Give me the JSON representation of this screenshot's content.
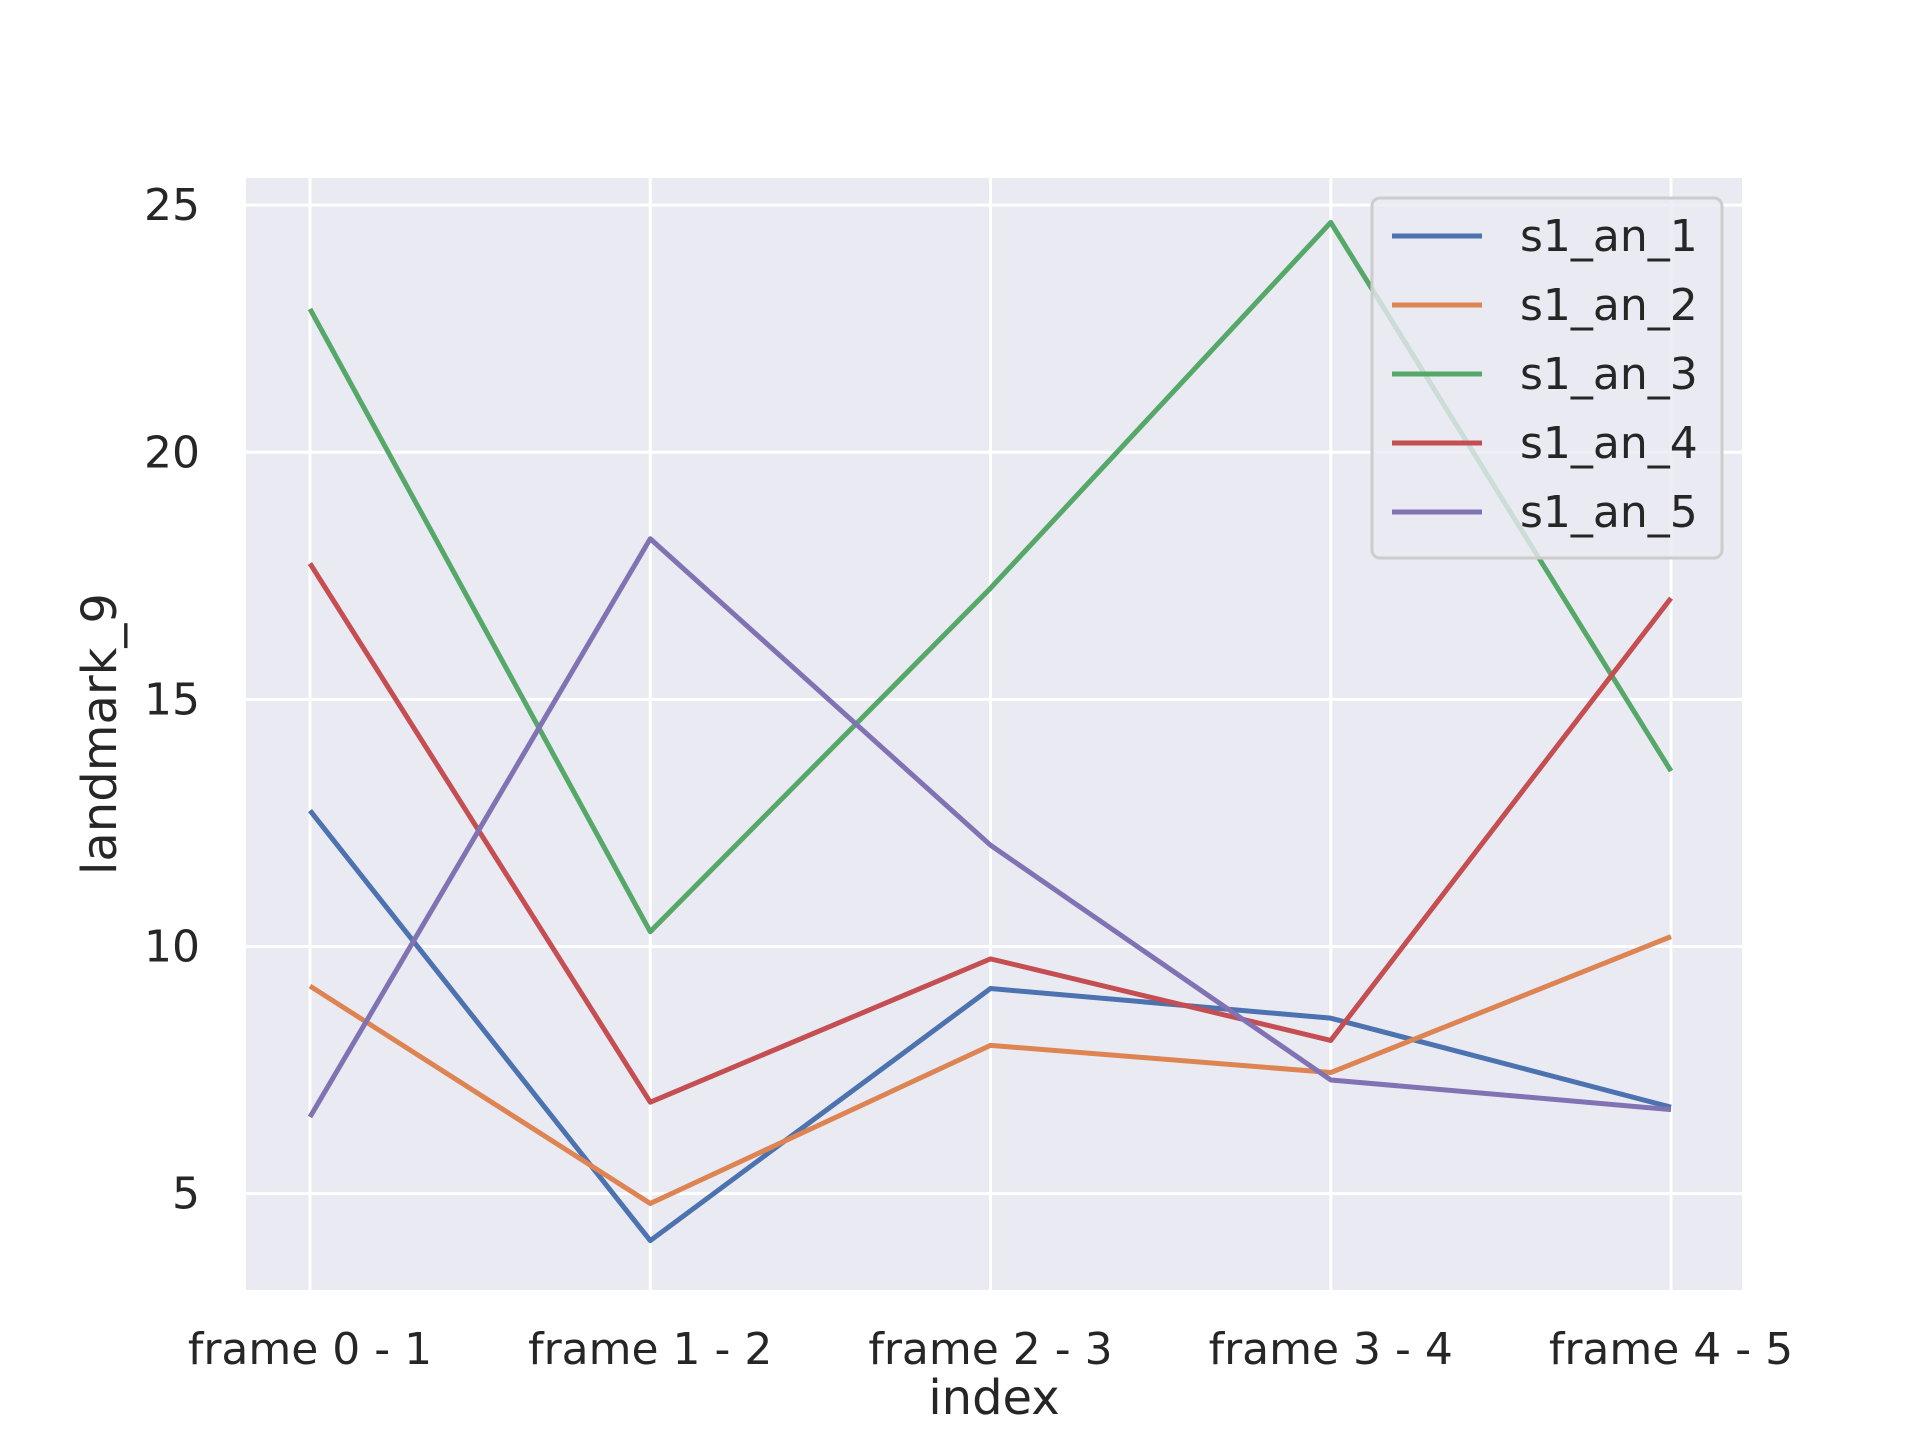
{
  "chart_data": {
    "type": "line",
    "xlabel": "index",
    "ylabel": "landmark_9",
    "categories": [
      "frame 0 - 1",
      "frame 1 - 2",
      "frame 2 - 3",
      "frame 3 - 4",
      "frame 4 - 5"
    ],
    "ylim": [
      3.05,
      25.55
    ],
    "yticks": [
      5,
      10,
      15,
      20,
      25
    ],
    "grid": true,
    "legend_position": "top-right",
    "series": [
      {
        "name": "s1_an_1",
        "color": "#4c72b0",
        "values": [
          12.75,
          4.05,
          9.15,
          8.55,
          6.75
        ]
      },
      {
        "name": "s1_an_2",
        "color": "#dd8452",
        "values": [
          9.2,
          4.8,
          8.0,
          7.45,
          10.2
        ]
      },
      {
        "name": "s1_an_3",
        "color": "#55a868",
        "values": [
          22.9,
          10.3,
          17.25,
          24.65,
          13.55
        ]
      },
      {
        "name": "s1_an_4",
        "color": "#c44e52",
        "values": [
          17.75,
          6.85,
          9.75,
          8.1,
          17.05
        ]
      },
      {
        "name": "s1_an_5",
        "color": "#8172b3",
        "values": [
          6.55,
          18.25,
          12.05,
          7.3,
          6.7
        ]
      }
    ]
  }
}
